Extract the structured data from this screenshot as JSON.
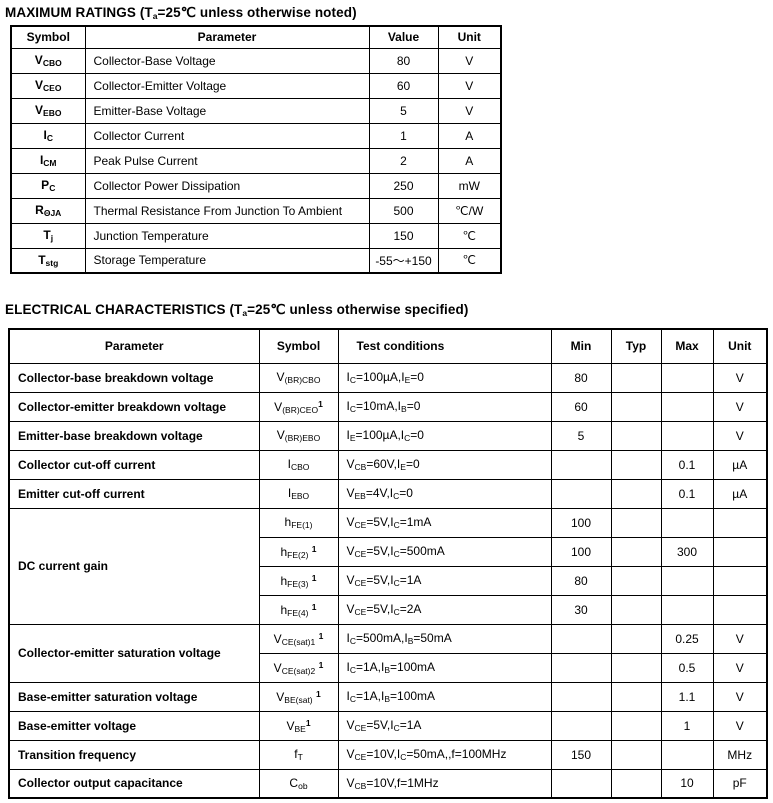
{
  "page": {
    "background": "#ffffff",
    "text_color": "#000000",
    "border_color": "#000000"
  },
  "max_ratings": {
    "title": "MAXIMUM RATINGS (T_{a}=25℃ unless otherwise noted)",
    "headers": {
      "symbol": "Symbol",
      "parameter": "Parameter",
      "value": "Value",
      "unit": "Unit"
    },
    "rows": [
      {
        "symbol": "V_{CBO}",
        "parameter": "Collector-Base Voltage",
        "value": "80",
        "unit": "V"
      },
      {
        "symbol": "V_{CEO}",
        "parameter": "Collector-Emitter Voltage",
        "value": "60",
        "unit": "V"
      },
      {
        "symbol": "V_{EBO}",
        "parameter": "Emitter-Base Voltage",
        "value": "5",
        "unit": "V"
      },
      {
        "symbol": "I_{C}",
        "parameter": "Collector Current",
        "value": "1",
        "unit": "A"
      },
      {
        "symbol": "I_{CM}",
        "parameter": "Peak Pulse Current",
        "value": "2",
        "unit": "A"
      },
      {
        "symbol": "P_{C}",
        "parameter": "Collector Power Dissipation",
        "value": "250",
        "unit": "mW"
      },
      {
        "symbol": "R_{ΘJA}",
        "parameter": "Thermal Resistance From Junction To Ambient",
        "value": "500",
        "unit": "℃/W"
      },
      {
        "symbol": "T_{j}",
        "parameter": "Junction Temperature",
        "value": "150",
        "unit": "℃"
      },
      {
        "symbol": "T_{stg}",
        "parameter": "Storage Temperature",
        "value": "-55～+150",
        "unit": "℃"
      }
    ]
  },
  "electrical": {
    "title": "ELECTRICAL CHARACTERISTICS (T_{a}=25℃ unless otherwise specified)",
    "headers": {
      "parameter": "Parameter",
      "symbol": "Symbol",
      "conditions": "Test conditions",
      "min": "Min",
      "typ": "Typ",
      "max": "Max",
      "unit": "Unit"
    },
    "groups": [
      {
        "parameter": "Collector-base breakdown voltage",
        "rows": [
          {
            "symbol": "V_{(BR)CBO}",
            "conditions": "I_{C}=100µA,I_{E}=0",
            "min": "80",
            "typ": "",
            "max": "",
            "unit": "V"
          }
        ]
      },
      {
        "parameter": "Collector-emitter breakdown voltage",
        "rows": [
          {
            "symbol": "V_{(BR)CEO}^{1}",
            "conditions": "I_{C}=10mA,I_{B}=0",
            "min": "60",
            "typ": "",
            "max": "",
            "unit": "V"
          }
        ]
      },
      {
        "parameter": "Emitter-base breakdown voltage",
        "rows": [
          {
            "symbol": "V_{(BR)EBO}",
            "conditions": "I_{E}=100µA,I_{C}=0",
            "min": "5",
            "typ": "",
            "max": "",
            "unit": "V"
          }
        ]
      },
      {
        "parameter": "Collector cut-off current",
        "rows": [
          {
            "symbol": "I_{CBO}",
            "conditions": "V_{CB}=60V,I_{E}=0",
            "min": "",
            "typ": "",
            "max": "0.1",
            "unit": "µA"
          }
        ]
      },
      {
        "parameter": "Emitter cut-off current",
        "rows": [
          {
            "symbol": "I_{EBO}",
            "conditions": "V_{EB}=4V,I_{C}=0",
            "min": "",
            "typ": "",
            "max": "0.1",
            "unit": "µA"
          }
        ]
      },
      {
        "parameter": "DC current gain",
        "rows": [
          {
            "symbol": "h_{FE(1)}",
            "conditions": "V_{CE}=5V,I_{C}=1mA",
            "min": "100",
            "typ": "",
            "max": "",
            "unit": ""
          },
          {
            "symbol": "h_{FE(2)} ^{1}",
            "conditions": "V_{CE}=5V,I_{C}=500mA",
            "min": "100",
            "typ": "",
            "max": "300",
            "unit": ""
          },
          {
            "symbol": "h_{FE(3)} ^{1}",
            "conditions": "V_{CE}=5V,I_{C}=1A",
            "min": "80",
            "typ": "",
            "max": "",
            "unit": ""
          },
          {
            "symbol": "h_{FE(4)} ^{1}",
            "conditions": "V_{CE}=5V,I_{C}=2A",
            "min": "30",
            "typ": "",
            "max": "",
            "unit": ""
          }
        ]
      },
      {
        "parameter": "Collector-emitter saturation voltage",
        "rows": [
          {
            "symbol": "V_{CE(sat)1} ^{1}",
            "conditions": "I_{C}=500mA,I_{B}=50mA",
            "min": "",
            "typ": "",
            "max": "0.25",
            "unit": "V"
          },
          {
            "symbol": "V_{CE(sat)2} ^{1}",
            "conditions": "I_{C}=1A,I_{B}=100mA",
            "min": "",
            "typ": "",
            "max": "0.5",
            "unit": "V"
          }
        ]
      },
      {
        "parameter": "Base-emitter saturation voltage",
        "rows": [
          {
            "symbol": "V_{BE(sat)} ^{1}",
            "conditions": "I_{C}=1A,I_{B}=100mA",
            "min": "",
            "typ": "",
            "max": "1.1",
            "unit": "V"
          }
        ]
      },
      {
        "parameter": "Base-emitter voltage",
        "rows": [
          {
            "symbol": "V_{BE}^{1}",
            "conditions": "V_{CE}=5V,I_{C}=1A",
            "min": "",
            "typ": "",
            "max": "1",
            "unit": "V"
          }
        ]
      },
      {
        "parameter": "Transition frequency",
        "rows": [
          {
            "symbol": "f_{T}",
            "conditions": "V_{CE}=10V,I_{C}=50mA,,f=100MHz",
            "min": "150",
            "typ": "",
            "max": "",
            "unit": "MHz"
          }
        ]
      },
      {
        "parameter": "Collector output capacitance",
        "rows": [
          {
            "symbol": "C_{ob}",
            "conditions": "V_{CB}=10V,f=1MHz",
            "min": "",
            "typ": "",
            "max": "10",
            "unit": "pF"
          }
        ]
      }
    ]
  }
}
